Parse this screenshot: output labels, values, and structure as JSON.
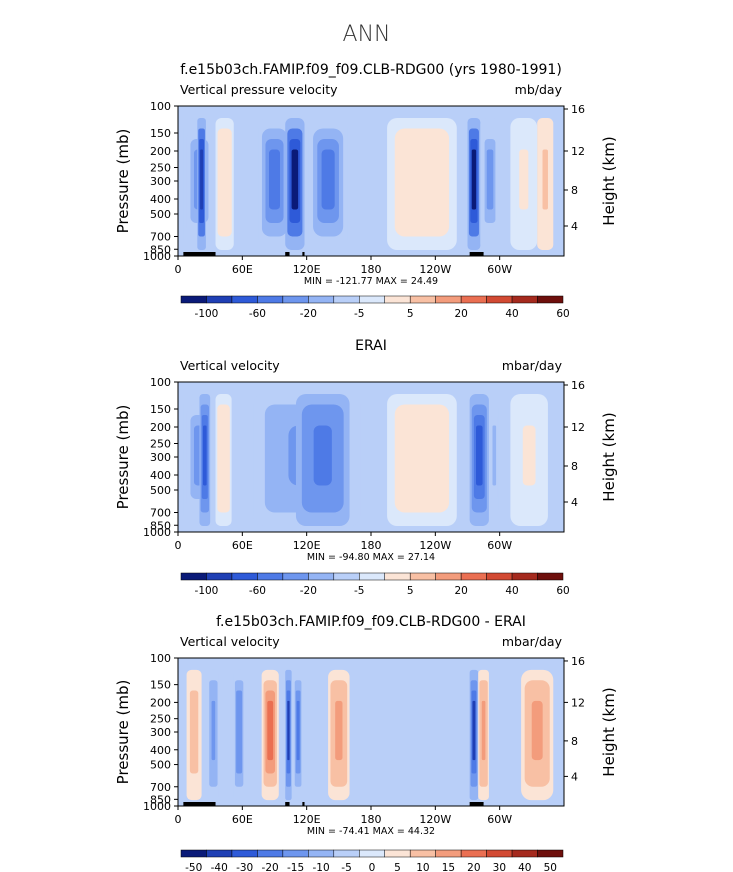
{
  "page_title": "ANN",
  "colors": {
    "scale": [
      "#0a1a78",
      "#1f3fb4",
      "#2e5ad8",
      "#4e7ae6",
      "#6e96ee",
      "#94b4f4",
      "#b9cff8",
      "#dbe8fb",
      "#fbe4d6",
      "#f8c0a4",
      "#f39c7c",
      "#ea6f52",
      "#d24a33",
      "#a52a1e",
      "#6e0f0c"
    ],
    "land": "#000000"
  },
  "chart_data": [
    {
      "type": "heatmap",
      "title": "f.e15b03ch.FAMIP.f09_f09.CLB-RDG00 (yrs 1980-1991)",
      "left_label": "Vertical pressure velocity",
      "right_label": "mb/day",
      "ylabel": "Pressure (mb)",
      "ylabel_right": "Height (km)",
      "x_ticks": [
        "0",
        "60E",
        "120E",
        "180",
        "120W",
        "60W"
      ],
      "y_ticks": [
        "100",
        "150",
        "200",
        "250",
        "300",
        "400",
        "500",
        "700",
        "850",
        "1000"
      ],
      "y2_ticks": [
        "16",
        "12",
        "8",
        "4"
      ],
      "stats": "MIN = -121.77  MAX =  24.49",
      "colorbar_labels": [
        "-100",
        "-60",
        "-20",
        "-5",
        "5",
        "20",
        "40",
        "60"
      ],
      "regions": [
        {
          "lon": [
            5,
            35
          ],
          "val": -40
        },
        {
          "lon": [
            18,
            26
          ],
          "val": -100
        },
        {
          "lon": [
            35,
            52
          ],
          "val": 20
        },
        {
          "lon": [
            75,
            105
          ],
          "val": -60
        },
        {
          "lon": [
            100,
            118
          ],
          "val": -110
        },
        {
          "lon": [
            122,
            158
          ],
          "val": -60
        },
        {
          "lon": [
            195,
            260
          ],
          "val": 15
        },
        {
          "lon": [
            270,
            282
          ],
          "val": -110
        },
        {
          "lon": [
            282,
            300
          ],
          "val": -40
        },
        {
          "lon": [
            310,
            335
          ],
          "val": 8
        },
        {
          "lon": [
            335,
            350
          ],
          "val": 25
        }
      ]
    },
    {
      "type": "heatmap",
      "title": "ERAI",
      "left_label": "Vertical velocity",
      "right_label": "mbar/day",
      "ylabel": "Pressure (mb)",
      "ylabel_right": "Height (km)",
      "x_ticks": [
        "0",
        "60E",
        "120E",
        "180",
        "120W",
        "60W"
      ],
      "y_ticks": [
        "100",
        "150",
        "200",
        "250",
        "300",
        "400",
        "500",
        "700",
        "850",
        "1000"
      ],
      "y2_ticks": [
        "16",
        "12",
        "8",
        "4"
      ],
      "stats": "MIN = -94.80  MAX =  27.14",
      "colorbar_labels": [
        "-100",
        "-60",
        "-20",
        "-5",
        "5",
        "20",
        "40",
        "60"
      ],
      "regions": [
        {
          "lon": [
            5,
            35
          ],
          "val": -40
        },
        {
          "lon": [
            20,
            30
          ],
          "val": -80
        },
        {
          "lon": [
            35,
            50
          ],
          "val": 20
        },
        {
          "lon": [
            70,
            170
          ],
          "val": -50
        },
        {
          "lon": [
            110,
            160
          ],
          "val": -70
        },
        {
          "lon": [
            195,
            260
          ],
          "val": 15
        },
        {
          "lon": [
            272,
            290
          ],
          "val": -80
        },
        {
          "lon": [
            290,
            300
          ],
          "val": -30
        },
        {
          "lon": [
            310,
            345
          ],
          "val": 8
        }
      ]
    },
    {
      "type": "heatmap",
      "title": "f.e15b03ch.FAMIP.f09_f09.CLB-RDG00 - ERAI",
      "left_label": "Vertical velocity",
      "right_label": "mbar/day",
      "ylabel": "Pressure (mb)",
      "ylabel_right": "Height (km)",
      "x_ticks": [
        "0",
        "60E",
        "120E",
        "180",
        "120W",
        "60W"
      ],
      "y_ticks": [
        "100",
        "150",
        "200",
        "250",
        "300",
        "400",
        "500",
        "700",
        "850",
        "1000"
      ],
      "y2_ticks": [
        "16",
        "12",
        "8",
        "4"
      ],
      "stats": "MIN = -74.41  MAX =  44.32",
      "colorbar_labels": [
        "-50",
        "-40",
        "-30",
        "-20",
        "-15",
        "-10",
        "-5",
        "0",
        "5",
        "10",
        "15",
        "20",
        "30",
        "40",
        "50"
      ],
      "regions": [
        {
          "lon": [
            8,
            22
          ],
          "val": 15
        },
        {
          "lon": [
            28,
            38
          ],
          "val": -20
        },
        {
          "lon": [
            52,
            62
          ],
          "val": -25
        },
        {
          "lon": [
            78,
            94
          ],
          "val": 30
        },
        {
          "lon": [
            100,
            106
          ],
          "val": -40
        },
        {
          "lon": [
            108,
            116
          ],
          "val": -30
        },
        {
          "lon": [
            140,
            160
          ],
          "val": 20
        },
        {
          "lon": [
            272,
            280
          ],
          "val": -40
        },
        {
          "lon": [
            280,
            290
          ],
          "val": 20
        },
        {
          "lon": [
            320,
            350
          ],
          "val": 20
        }
      ]
    }
  ]
}
